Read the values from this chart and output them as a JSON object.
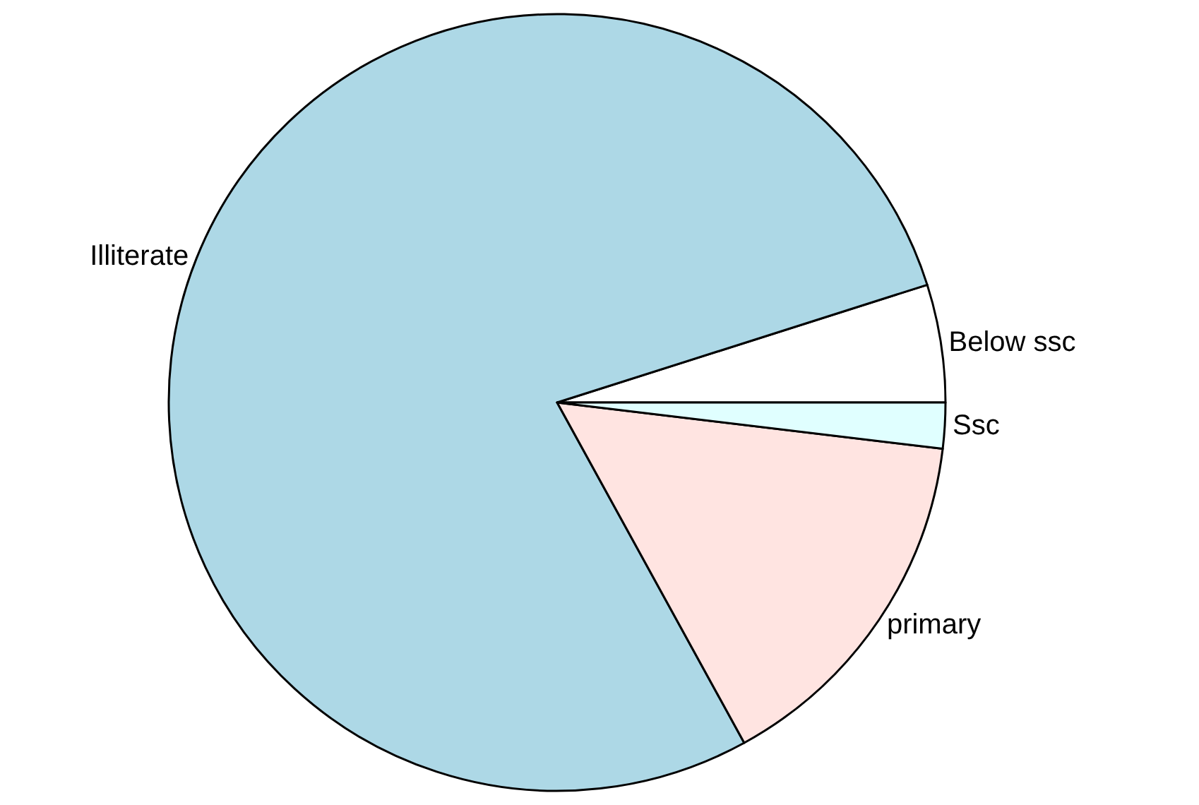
{
  "chart_data": {
    "type": "pie",
    "categories": [
      "Below ssc",
      "Illiterate",
      "primary",
      "Ssc"
    ],
    "values": [
      4.9,
      78.1,
      15.1,
      1.9
    ],
    "colors": [
      "#ffffff",
      "#add8e6",
      "#ffe4e1",
      "#e0ffff"
    ]
  }
}
